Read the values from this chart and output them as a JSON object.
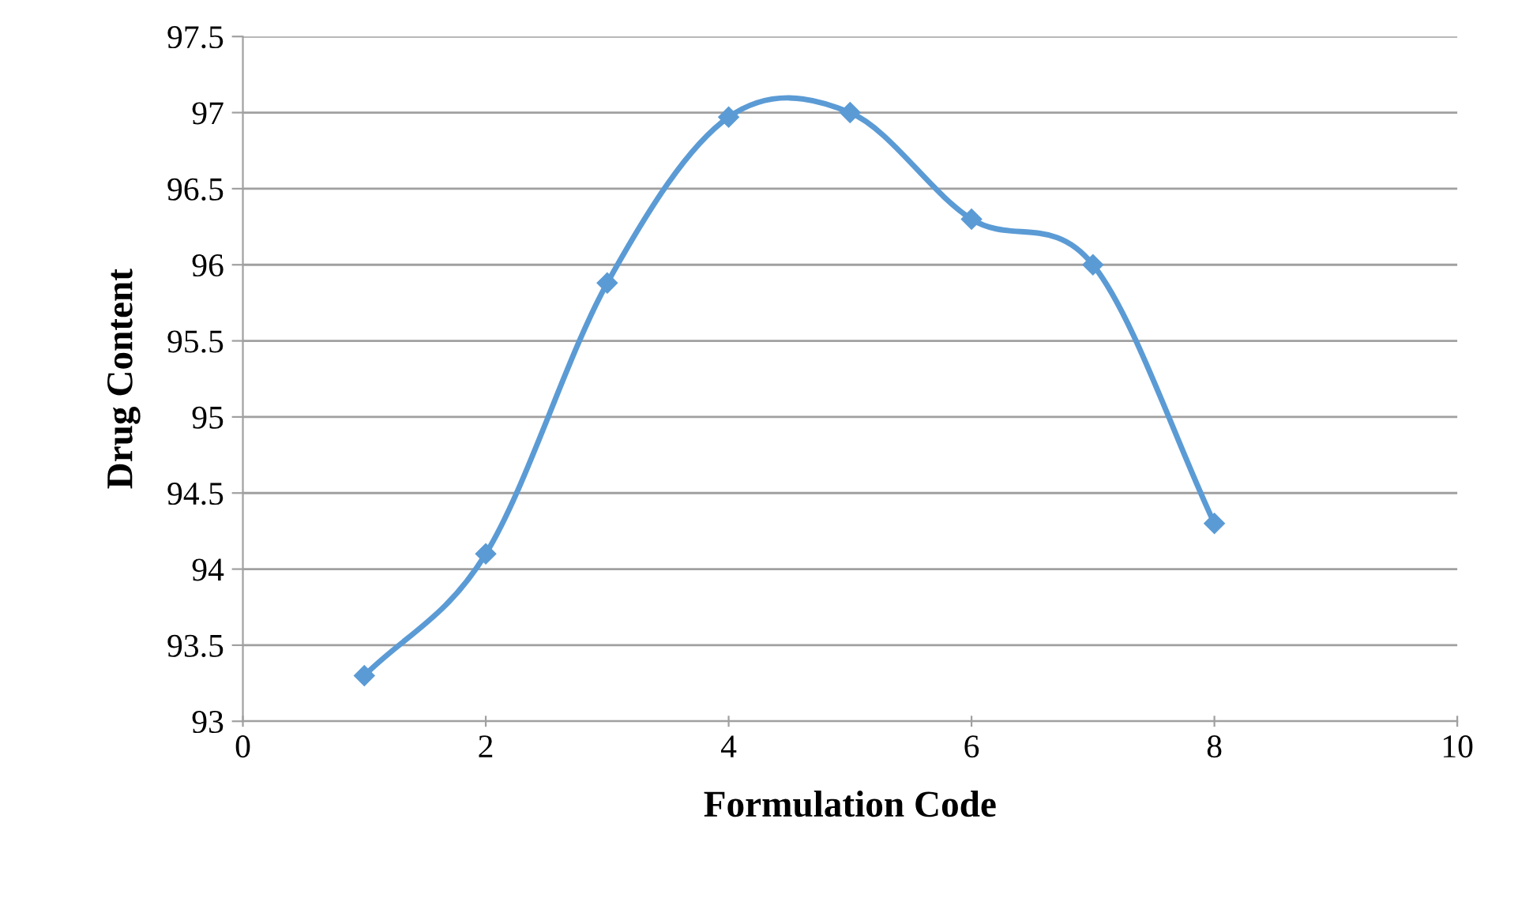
{
  "chart_data": {
    "type": "line",
    "xlabel": "Formulation Code",
    "ylabel": "Drug Content",
    "x": [
      1,
      2,
      3,
      4,
      5,
      6,
      7,
      8
    ],
    "series": [
      {
        "color": "#5b9bd5",
        "values": [
          93.3,
          94.1,
          95.88,
          96.97,
          97.0,
          96.3,
          96.0,
          94.3
        ]
      }
    ],
    "xlim": [
      0,
      10
    ],
    "xticks": [
      0,
      2,
      4,
      6,
      8,
      10
    ],
    "ylim": [
      93,
      97.5
    ],
    "yticks": [
      93,
      93.5,
      94,
      94.5,
      95,
      95.5,
      96,
      96.5,
      97,
      97.5
    ],
    "grid": "y",
    "marker": "diamond",
    "line_style": "solid"
  }
}
